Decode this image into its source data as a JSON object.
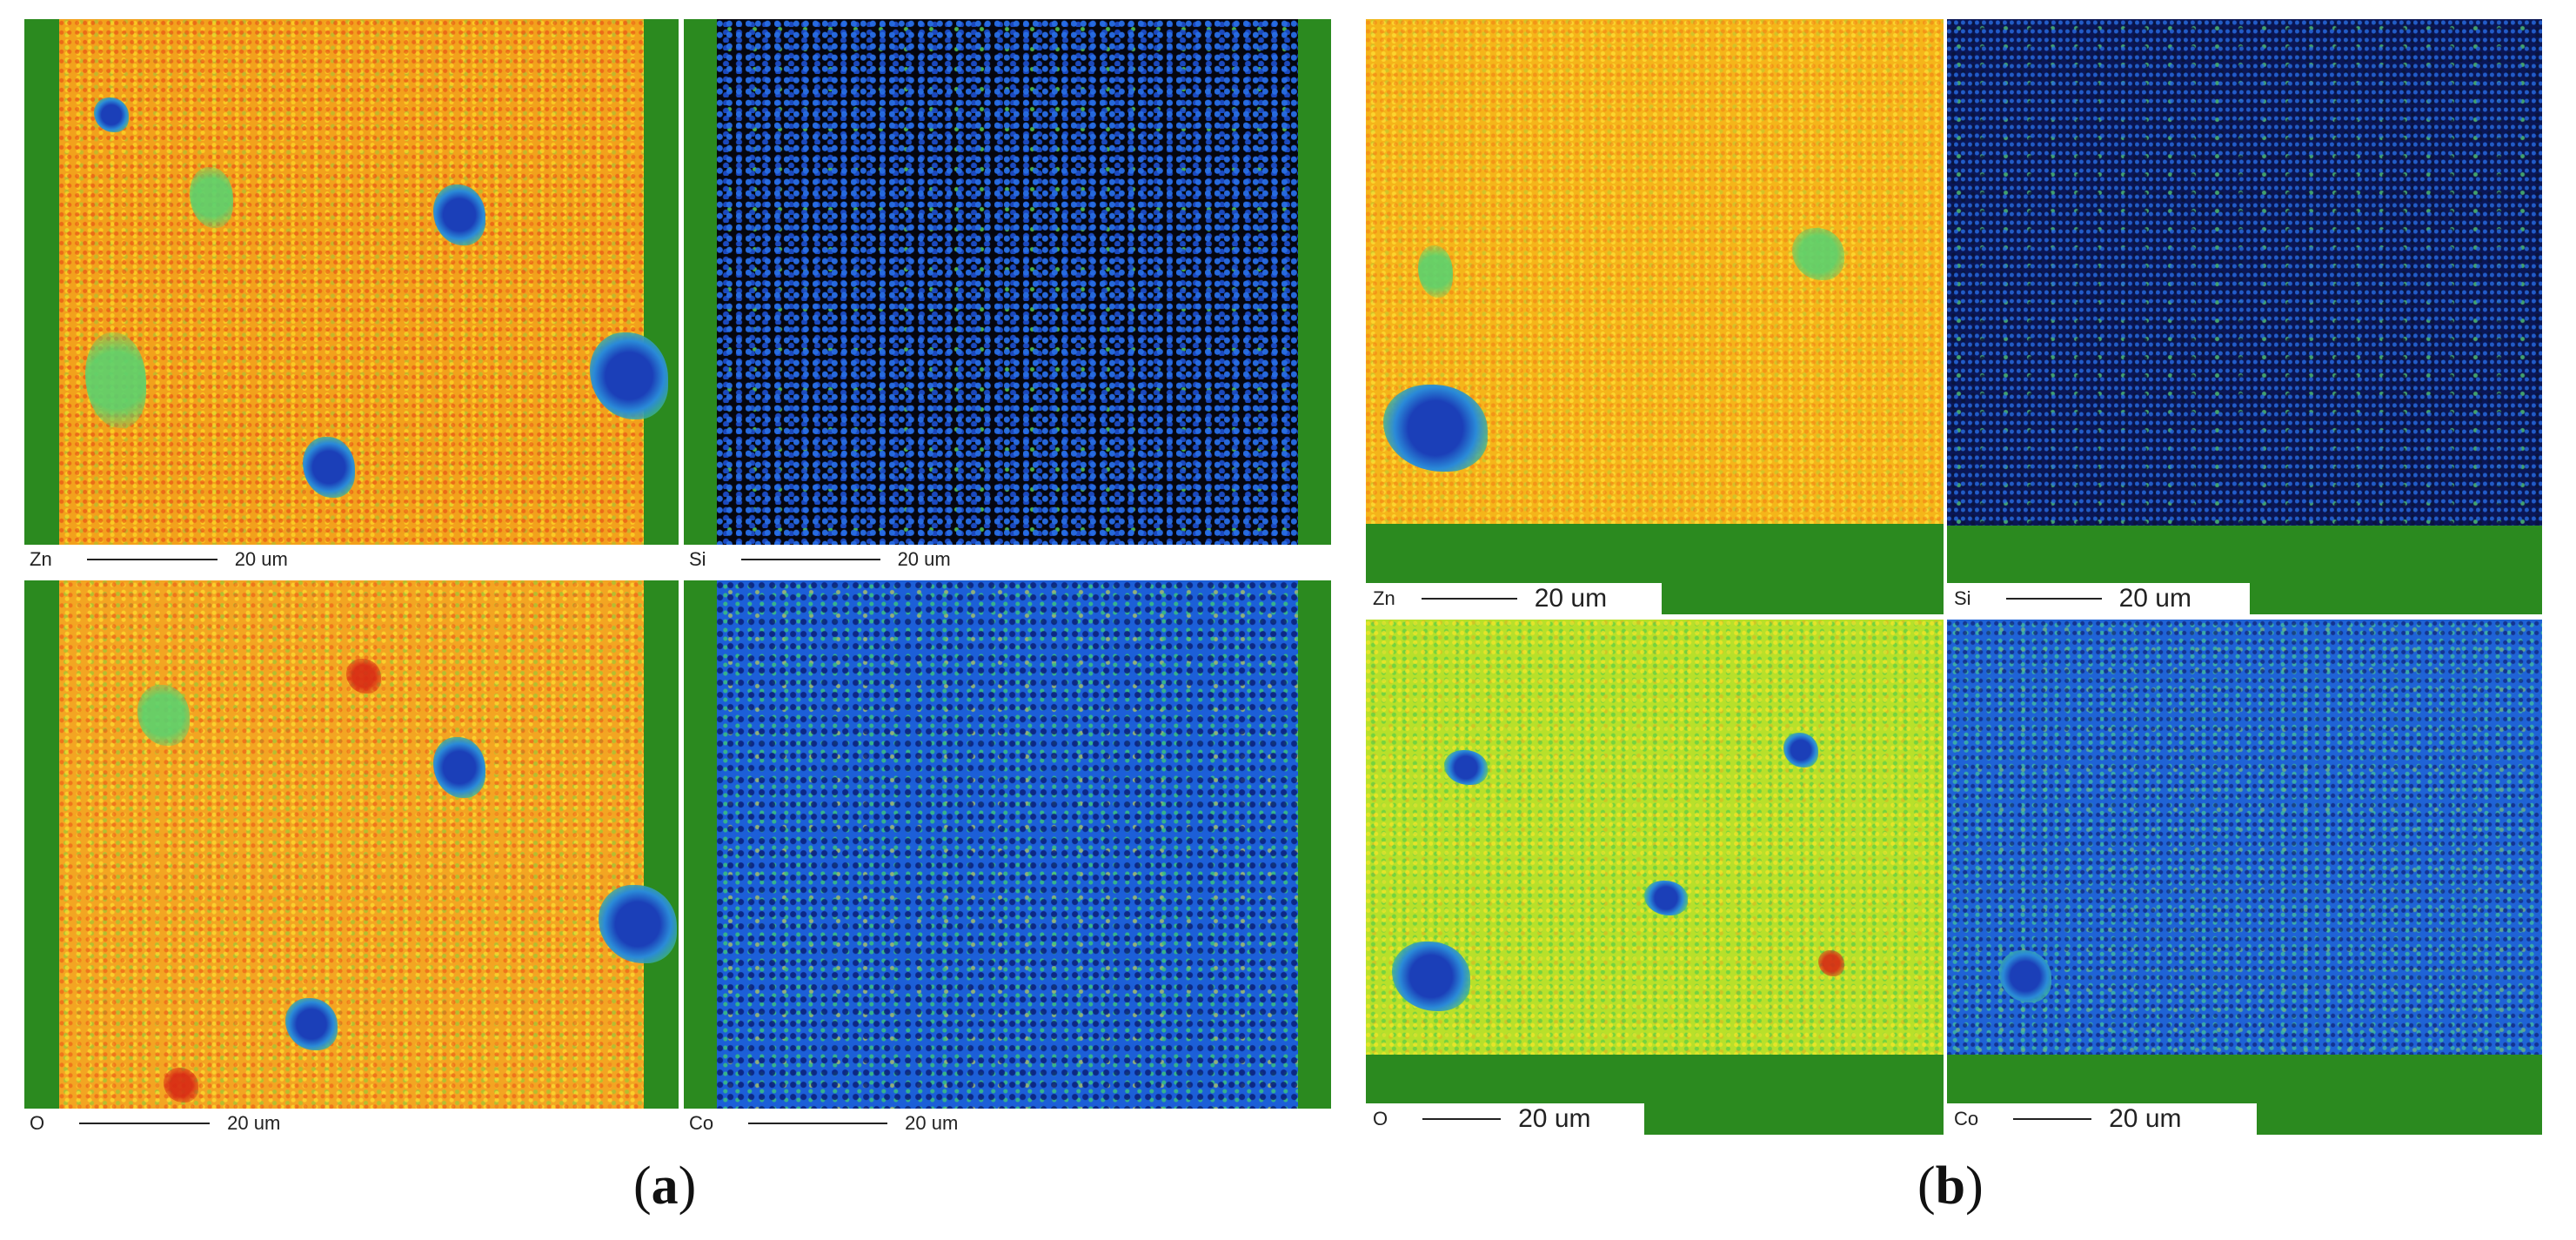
{
  "panels": {
    "a": {
      "caption_open": "(",
      "caption_letter": "a",
      "caption_close": ")",
      "maps": [
        {
          "element": "Zn",
          "scale": "20 um"
        },
        {
          "element": "Si",
          "scale": "20 um"
        },
        {
          "element": "O",
          "scale": "20 um"
        },
        {
          "element": "Co",
          "scale": "20 um"
        }
      ]
    },
    "b": {
      "caption_open": "(",
      "caption_letter": "b",
      "caption_close": ")",
      "maps": [
        {
          "element": "Zn",
          "scale": "20 um"
        },
        {
          "element": "Si",
          "scale": "20 um"
        },
        {
          "element": "O",
          "scale": "20 um"
        },
        {
          "element": "Co",
          "scale": "20 um"
        }
      ]
    }
  },
  "colors": {
    "frame_green": "#2b8a1f",
    "zn_map": "#f2a11c",
    "si_map": "#05060f",
    "o_map": "#f3a522",
    "co_map": "#1c5fd8"
  }
}
